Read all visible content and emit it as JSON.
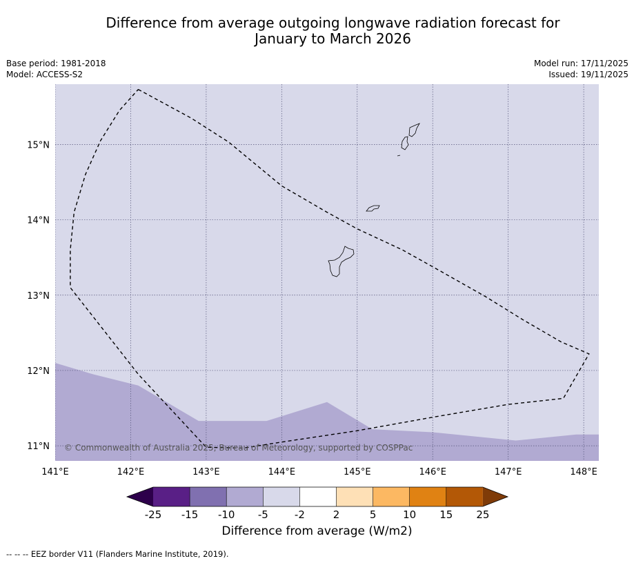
{
  "title": {
    "line1": "Difference from average outgoing longwave radiation forecast for",
    "line2": "January to March 2026"
  },
  "meta": {
    "base_period": "Base period: 1981-2018",
    "model": "Model: ACCESS-S2",
    "model_run": "Model run: 17/11/2025",
    "issued": "Issued: 19/11/2025"
  },
  "map": {
    "lon_labels": [
      "141°E",
      "142°E",
      "143°E",
      "144°E",
      "145°E",
      "146°E",
      "147°E",
      "148°E"
    ],
    "lat_labels": [
      "15°N",
      "14°N",
      "13°N",
      "12°N",
      "11°N"
    ],
    "lon_range": [
      141.0,
      148.2
    ],
    "lat_range": [
      10.8,
      15.8
    ],
    "copyright": "© Commonwealth of Australia 2025, Bureau of Meteorology, supported by COSPPac",
    "islands": [
      "Guam",
      "Rota",
      "Tinian",
      "Saipan"
    ],
    "field": {
      "background_class": "-5 to -2",
      "lower_region_class": "-10 to -5",
      "lower_region_top_boundary": [
        {
          "lon": 141.0,
          "lat": 12.1
        },
        {
          "lon": 141.5,
          "lat": 11.95
        },
        {
          "lon": 142.1,
          "lat": 11.8
        },
        {
          "lon": 142.9,
          "lat": 11.33
        },
        {
          "lon": 143.8,
          "lat": 11.33
        },
        {
          "lon": 144.6,
          "lat": 11.58
        },
        {
          "lon": 145.2,
          "lat": 11.22
        },
        {
          "lon": 146.0,
          "lat": 11.18
        },
        {
          "lon": 147.1,
          "lat": 11.07
        },
        {
          "lon": 147.9,
          "lat": 11.15
        },
        {
          "lon": 148.2,
          "lat": 11.15
        }
      ]
    },
    "eez_border": [
      {
        "lon": 142.1,
        "lat": 15.73
      },
      {
        "lon": 142.8,
        "lat": 15.35
      },
      {
        "lon": 143.3,
        "lat": 15.03
      },
      {
        "lon": 144.0,
        "lat": 14.45
      },
      {
        "lon": 144.6,
        "lat": 14.1
      },
      {
        "lon": 145.0,
        "lat": 13.88
      },
      {
        "lon": 145.6,
        "lat": 13.6
      },
      {
        "lon": 146.1,
        "lat": 13.32
      },
      {
        "lon": 146.7,
        "lat": 12.98
      },
      {
        "lon": 147.2,
        "lat": 12.67
      },
      {
        "lon": 147.7,
        "lat": 12.38
      },
      {
        "lon": 148.07,
        "lat": 12.22
      },
      {
        "lon": 147.73,
        "lat": 11.63
      },
      {
        "lon": 147.0,
        "lat": 11.55
      },
      {
        "lon": 146.0,
        "lat": 11.38
      },
      {
        "lon": 145.0,
        "lat": 11.2
      },
      {
        "lon": 144.0,
        "lat": 11.05
      },
      {
        "lon": 143.5,
        "lat": 10.97
      },
      {
        "lon": 143.0,
        "lat": 10.98
      },
      {
        "lon": 142.1,
        "lat": 11.95
      },
      {
        "lon": 141.2,
        "lat": 13.1
      },
      {
        "lon": 141.2,
        "lat": 13.6
      },
      {
        "lon": 141.25,
        "lat": 14.1
      },
      {
        "lon": 141.4,
        "lat": 14.6
      },
      {
        "lon": 141.6,
        "lat": 15.05
      },
      {
        "lon": 141.85,
        "lat": 15.45
      },
      {
        "lon": 142.1,
        "lat": 15.73
      }
    ]
  },
  "colorbar": {
    "title": "Difference from average (W/m2)",
    "tick_labels": [
      "-25",
      "-15",
      "-10",
      "-5",
      "-2",
      "2",
      "5",
      "10",
      "15",
      "25"
    ],
    "colors": [
      "#591f86",
      "#8070b0",
      "#b1aad2",
      "#d8d9ea",
      "#ffffff",
      "#fee0b6",
      "#fcb862",
      "#e08213",
      "#b35806"
    ],
    "under_color": "#2d004b",
    "over_color": "#7f3b08"
  },
  "footnote": "--  --  -- EEZ border V11 (Flanders Marine Institute, 2019)."
}
